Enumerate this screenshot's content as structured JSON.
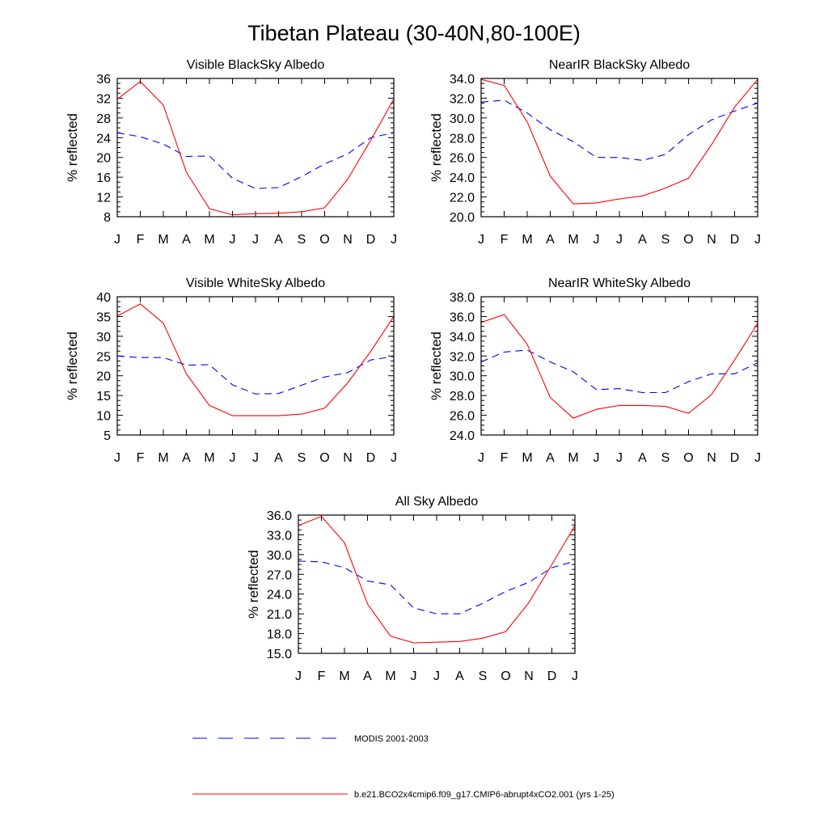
{
  "title": "Tibetan Plateau (30-40N,80-100E)",
  "legend": {
    "items": [
      {
        "label": "MODIS 2001-2003",
        "color": "#0000ff",
        "dashed": true
      },
      {
        "label": "b.e21.BCO2x4cmip6.f09_g17.CMIP6-abrupt4xCO2.001 (yrs 1-25)",
        "color": "#ff0000",
        "dashed": false
      }
    ]
  },
  "chart_data": [
    {
      "type": "line",
      "title": "Visible BlackSky Albedo",
      "xlabel": "",
      "ylabel": "% reflected",
      "categories": [
        "J",
        "F",
        "M",
        "A",
        "M",
        "J",
        "J",
        "A",
        "S",
        "O",
        "N",
        "D",
        "J"
      ],
      "ylim": [
        8,
        36
      ],
      "yticks": [
        "8",
        "12",
        "16",
        "20",
        "24",
        "28",
        "32",
        "36"
      ],
      "series": [
        {
          "name": "MODIS 2001-2003",
          "values": [
            25.0,
            24.2,
            22.7,
            20.2,
            20.3,
            15.8,
            13.7,
            13.9,
            16.1,
            18.7,
            20.7,
            24.0,
            25.0
          ]
        },
        {
          "name": "b.e21.BCO2x4cmip6.f09_g17.CMIP6-abrupt4xCO2.001 (yrs 1-25)",
          "values": [
            31.8,
            35.4,
            30.6,
            17.0,
            9.6,
            8.4,
            8.6,
            8.7,
            9.0,
            9.8,
            15.6,
            23.5,
            31.8
          ]
        }
      ]
    },
    {
      "type": "line",
      "title": "NearIR BlackSky Albedo",
      "xlabel": "",
      "ylabel": "% reflected",
      "categories": [
        "J",
        "F",
        "M",
        "A",
        "M",
        "J",
        "J",
        "A",
        "S",
        "O",
        "N",
        "D",
        "J"
      ],
      "ylim": [
        20,
        34
      ],
      "yticks": [
        "20.0",
        "22.0",
        "24.0",
        "26.0",
        "28.0",
        "30.0",
        "32.0",
        "34.0"
      ],
      "series": [
        {
          "name": "MODIS 2001-2003",
          "values": [
            31.6,
            31.8,
            30.5,
            28.8,
            27.6,
            26.0,
            26.0,
            25.7,
            26.3,
            28.3,
            29.8,
            30.7,
            31.5
          ]
        },
        {
          "name": "b.e21.BCO2x4cmip6.f09_g17.CMIP6-abrupt4xCO2.001 (yrs 1-25)",
          "values": [
            33.9,
            33.3,
            29.6,
            24.1,
            21.3,
            21.4,
            21.8,
            22.1,
            22.9,
            23.9,
            27.3,
            31.1,
            33.9
          ]
        }
      ]
    },
    {
      "type": "line",
      "title": "Visible WhiteSky Albedo",
      "xlabel": "",
      "ylabel": "% reflected",
      "categories": [
        "J",
        "F",
        "M",
        "A",
        "M",
        "J",
        "J",
        "A",
        "S",
        "O",
        "N",
        "D",
        "J"
      ],
      "ylim": [
        5,
        40
      ],
      "yticks": [
        "5",
        "10",
        "15",
        "20",
        "25",
        "30",
        "35",
        "40"
      ],
      "series": [
        {
          "name": "MODIS 2001-2003",
          "values": [
            25.0,
            24.6,
            24.6,
            22.7,
            22.8,
            17.7,
            15.4,
            15.5,
            17.6,
            19.7,
            20.8,
            24.0,
            24.9
          ]
        },
        {
          "name": "b.e21.BCO2x4cmip6.f09_g17.CMIP6-abrupt4xCO2.001 (yrs 1-25)",
          "values": [
            35.1,
            38.2,
            33.3,
            20.5,
            12.5,
            9.9,
            9.9,
            9.9,
            10.3,
            11.8,
            18.2,
            26.2,
            35.0
          ]
        }
      ]
    },
    {
      "type": "line",
      "title": "NearIR WhiteSky Albedo",
      "xlabel": "",
      "ylabel": "% reflected",
      "categories": [
        "J",
        "F",
        "M",
        "A",
        "M",
        "J",
        "J",
        "A",
        "S",
        "O",
        "N",
        "D",
        "J"
      ],
      "ylim": [
        24,
        38
      ],
      "yticks": [
        "24.0",
        "26.0",
        "28.0",
        "30.0",
        "32.0",
        "34.0",
        "36.0",
        "38.0"
      ],
      "series": [
        {
          "name": "MODIS 2001-2003",
          "values": [
            31.4,
            32.4,
            32.6,
            31.4,
            30.4,
            28.6,
            28.7,
            28.3,
            28.3,
            29.4,
            30.2,
            30.2,
            31.3
          ]
        },
        {
          "name": "b.e21.BCO2x4cmip6.f09_g17.CMIP6-abrupt4xCO2.001 (yrs 1-25)",
          "values": [
            35.4,
            36.2,
            33.2,
            27.8,
            25.7,
            26.6,
            27.0,
            27.0,
            26.9,
            26.2,
            28.1,
            31.6,
            35.3
          ]
        }
      ]
    },
    {
      "type": "line",
      "title": "All Sky Albedo",
      "xlabel": "",
      "ylabel": "% reflected",
      "categories": [
        "J",
        "F",
        "M",
        "A",
        "M",
        "J",
        "J",
        "A",
        "S",
        "O",
        "N",
        "D",
        "J"
      ],
      "ylim": [
        15,
        36
      ],
      "yticks": [
        "15.0",
        "18.0",
        "21.0",
        "24.0",
        "27.0",
        "30.0",
        "33.0",
        "36.0"
      ],
      "series": [
        {
          "name": "MODIS 2001-2003",
          "values": [
            29.0,
            28.9,
            28.0,
            26.0,
            25.4,
            21.9,
            21.0,
            21.0,
            22.6,
            24.4,
            25.8,
            28.0,
            29.0
          ]
        },
        {
          "name": "b.e21.BCO2x4cmip6.f09_g17.CMIP6-abrupt4xCO2.001 (yrs 1-25)",
          "values": [
            34.4,
            35.8,
            31.8,
            22.5,
            17.6,
            16.6,
            16.7,
            16.8,
            17.3,
            18.3,
            22.7,
            28.5,
            34.4
          ]
        }
      ]
    }
  ]
}
